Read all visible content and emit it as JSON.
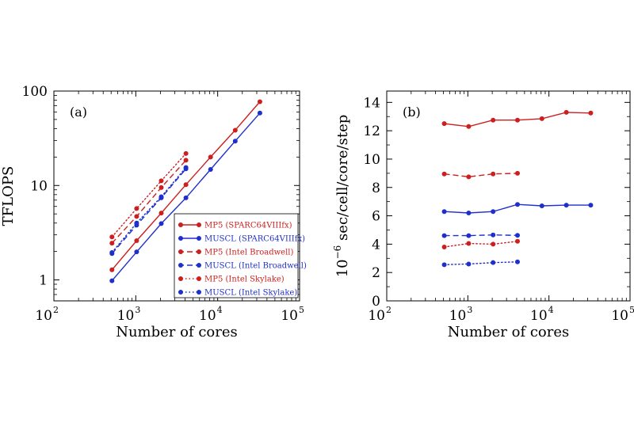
{
  "chart_data": [
    {
      "type": "line",
      "panel_label": "(a)",
      "xlabel": "Number of cores",
      "ylabel": "TFLOPS",
      "xscale": "log",
      "yscale": "log",
      "xlim": [
        100,
        100000
      ],
      "ylim": [
        0.6,
        100
      ],
      "grid": false,
      "legend_position": "bottom-right",
      "x_ticks": [
        {
          "base": "10",
          "exp": "2",
          "value": 100
        },
        {
          "base": "10",
          "exp": "3",
          "value": 1000
        },
        {
          "base": "10",
          "exp": "4",
          "value": 10000
        },
        {
          "base": "10",
          "exp": "5",
          "value": 100000
        }
      ],
      "y_ticks": [
        {
          "label": "1",
          "value": 1
        },
        {
          "label": "10",
          "value": 10
        },
        {
          "label": "100",
          "value": 100
        }
      ],
      "series": [
        {
          "name": "MP5 (SPARC64VIIIfx)",
          "color": "#cc1f1f",
          "dash": "solid",
          "x": [
            512,
            1024,
            2048,
            4096,
            8192,
            16384,
            32768
          ],
          "y": [
            1.28,
            2.6,
            5.1,
            10.2,
            20.0,
            38.5,
            77.0
          ]
        },
        {
          "name": "MUSCL (SPARC64VIIIfx)",
          "color": "#1f2fcc",
          "dash": "solid",
          "x": [
            512,
            1024,
            2048,
            4096,
            8192,
            16384,
            32768
          ],
          "y": [
            0.98,
            1.98,
            3.95,
            7.4,
            14.8,
            29.5,
            58.5
          ]
        },
        {
          "name": "MP5 (Intel Broadwell)",
          "color": "#cc1f1f",
          "dash": "dashed",
          "x": [
            512,
            1024,
            2048,
            4096
          ],
          "y": [
            2.45,
            4.7,
            9.5,
            18.5
          ]
        },
        {
          "name": "MUSCL (Intel Broadwell)",
          "color": "#1f2fcc",
          "dash": "dashed",
          "x": [
            512,
            1024,
            2048,
            4096
          ],
          "y": [
            1.9,
            3.8,
            7.4,
            15.0
          ]
        },
        {
          "name": "MP5 (Intel Skylake)",
          "color": "#cc1f1f",
          "dash": "dotted",
          "x": [
            512,
            1024,
            2048,
            4096
          ],
          "y": [
            2.85,
            5.7,
            11.2,
            21.8
          ]
        },
        {
          "name": "MUSCL (Intel Skylake)",
          "color": "#1f2fcc",
          "dash": "dotted",
          "x": [
            512,
            1024,
            2048,
            4096
          ],
          "y": [
            1.95,
            4.0,
            7.6,
            15.5
          ]
        }
      ]
    },
    {
      "type": "line",
      "panel_label": "(b)",
      "xlabel": "Number of cores",
      "ylabel_prefix": "10",
      "ylabel_exp": "−6",
      "ylabel_rest": " sec/cell/core/step",
      "xscale": "log",
      "yscale": "linear",
      "xlim": [
        100,
        100000
      ],
      "ylim": [
        0,
        14.8
      ],
      "grid": false,
      "x_ticks": [
        {
          "base": "10",
          "exp": "2",
          "value": 100
        },
        {
          "base": "10",
          "exp": "3",
          "value": 1000
        },
        {
          "base": "10",
          "exp": "4",
          "value": 10000
        },
        {
          "base": "10",
          "exp": "5",
          "value": 100000
        }
      ],
      "y_ticks": [
        {
          "label": "0",
          "value": 0
        },
        {
          "label": "2",
          "value": 2
        },
        {
          "label": "4",
          "value": 4
        },
        {
          "label": "6",
          "value": 6
        },
        {
          "label": "8",
          "value": 8
        },
        {
          "label": "10",
          "value": 10
        },
        {
          "label": "12",
          "value": 12
        },
        {
          "label": "14",
          "value": 14
        }
      ],
      "series": [
        {
          "name": "MP5 (SPARC64VIIIfx)",
          "color": "#cc1f1f",
          "dash": "solid",
          "x": [
            512,
            1024,
            2048,
            4096,
            8192,
            16384,
            32768
          ],
          "y": [
            12.5,
            12.3,
            12.75,
            12.75,
            12.85,
            13.3,
            13.25
          ]
        },
        {
          "name": "MUSCL (SPARC64VIIIfx)",
          "color": "#1f2fcc",
          "dash": "solid",
          "x": [
            512,
            1024,
            2048,
            4096,
            8192,
            16384,
            32768
          ],
          "y": [
            6.3,
            6.2,
            6.3,
            6.8,
            6.7,
            6.75,
            6.75
          ]
        },
        {
          "name": "MP5 (Intel Broadwell)",
          "color": "#cc1f1f",
          "dash": "dashed",
          "x": [
            512,
            1024,
            2048,
            4096
          ],
          "y": [
            8.95,
            8.75,
            8.95,
            9.0
          ]
        },
        {
          "name": "MUSCL (Intel Broadwell)",
          "color": "#1f2fcc",
          "dash": "dashed",
          "x": [
            512,
            1024,
            2048,
            4096
          ],
          "y": [
            4.6,
            4.6,
            4.65,
            4.62
          ]
        },
        {
          "name": "MP5 (Intel Skylake)",
          "color": "#cc1f1f",
          "dash": "dotted",
          "x": [
            512,
            1024,
            2048,
            4096
          ],
          "y": [
            3.8,
            4.05,
            4.0,
            4.2
          ]
        },
        {
          "name": "MUSCL (Intel Skylake)",
          "color": "#1f2fcc",
          "dash": "dotted",
          "x": [
            512,
            1024,
            2048,
            4096
          ],
          "y": [
            2.55,
            2.6,
            2.7,
            2.75
          ]
        }
      ]
    }
  ]
}
